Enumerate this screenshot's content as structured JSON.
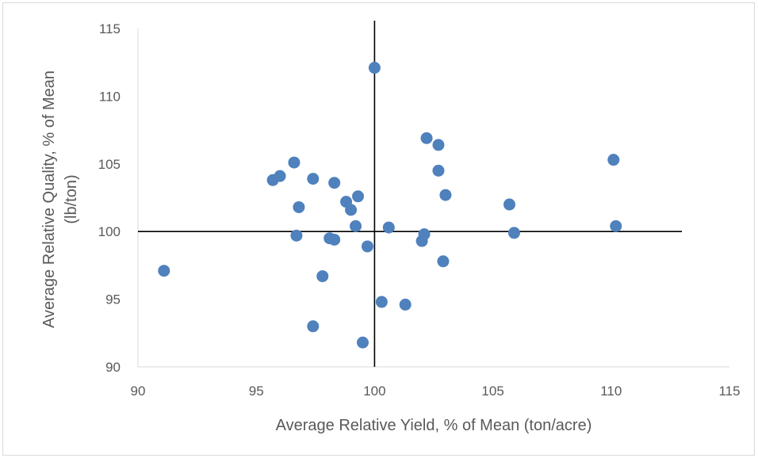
{
  "chart_data": {
    "type": "scatter",
    "title": "",
    "xlabel": "Average Relative Yield, % of Mean (ton/acre)",
    "ylabel_lines": [
      "Average Relative Quality, % of Mean",
      "(lb/ton)"
    ],
    "xlim": [
      90,
      115
    ],
    "ylim": [
      90,
      115
    ],
    "x_ticks": [
      "90",
      "95",
      "100",
      "105",
      "110",
      "115"
    ],
    "y_ticks": [
      "90",
      "95",
      "100",
      "105",
      "110",
      "115"
    ],
    "reference_lines": {
      "x": 100,
      "y": 100
    },
    "marker_color": "#4f81bd",
    "grid": false,
    "legend": "none",
    "series": [
      {
        "points": [
          [
            91.1,
            97.1
          ],
          [
            95.7,
            103.8
          ],
          [
            96.0,
            104.1
          ],
          [
            96.6,
            105.1
          ],
          [
            96.8,
            101.8
          ],
          [
            96.7,
            99.7
          ],
          [
            97.4,
            103.9
          ],
          [
            97.8,
            96.7
          ],
          [
            97.4,
            93.0
          ],
          [
            98.1,
            99.5
          ],
          [
            98.3,
            99.4
          ],
          [
            98.3,
            103.6
          ],
          [
            98.8,
            102.2
          ],
          [
            99.0,
            101.6
          ],
          [
            99.3,
            102.6
          ],
          [
            99.2,
            100.4
          ],
          [
            99.7,
            98.9
          ],
          [
            99.5,
            91.8
          ],
          [
            100.0,
            112.1
          ],
          [
            100.3,
            94.8
          ],
          [
            100.6,
            100.3
          ],
          [
            101.3,
            94.6
          ],
          [
            102.0,
            99.3
          ],
          [
            102.1,
            99.8
          ],
          [
            102.2,
            106.9
          ],
          [
            102.7,
            106.4
          ],
          [
            102.7,
            104.5
          ],
          [
            102.9,
            97.8
          ],
          [
            103.0,
            102.7
          ],
          [
            105.7,
            102.0
          ],
          [
            105.9,
            99.9
          ],
          [
            110.1,
            105.3
          ],
          [
            110.2,
            100.4
          ]
        ]
      }
    ]
  }
}
